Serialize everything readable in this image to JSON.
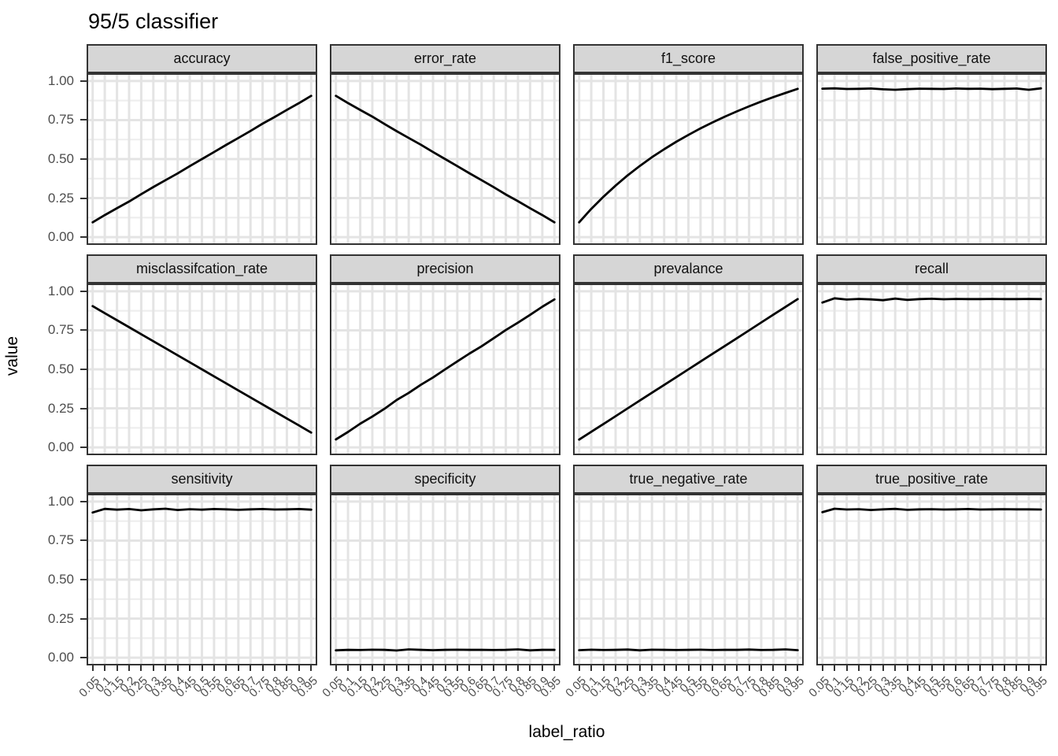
{
  "chart_data": {
    "type": "line",
    "title": "95/5 classifier",
    "xlabel": "label_ratio",
    "ylabel": "value",
    "layout": "facet grid 3 rows x 4 cols, shared axes",
    "legend": "none",
    "grid": "major and minor, light gray on white",
    "x": [
      0.05,
      0.1,
      0.15,
      0.2,
      0.25,
      0.3,
      0.35,
      0.4,
      0.45,
      0.5,
      0.55,
      0.6,
      0.65,
      0.7,
      0.75,
      0.8,
      0.85,
      0.9,
      0.95
    ],
    "x_tick_labels": [
      "0.05",
      "0.1",
      "0.15",
      "0.2",
      "0.25",
      "0.3",
      "0.35",
      "0.4",
      "0.45",
      "0.5",
      "0.55",
      "0.6",
      "0.65",
      "0.7",
      "0.75",
      "0.8",
      "0.85",
      "0.9",
      "0.95"
    ],
    "y_ticks": [
      1.0,
      0.75,
      0.5,
      0.25,
      0.0
    ],
    "y_tick_labels": [
      "1.00",
      "0.75",
      "0.50",
      "0.25",
      "0.00"
    ],
    "y_minor_ticks": [
      0.125,
      0.375,
      0.625,
      0.875
    ],
    "ylim": [
      -0.05,
      1.05
    ],
    "facets": [
      {
        "label": "accuracy",
        "values": [
          0.095,
          0.141,
          0.185,
          0.228,
          0.275,
          0.321,
          0.365,
          0.408,
          0.455,
          0.5,
          0.545,
          0.591,
          0.635,
          0.68,
          0.727,
          0.77,
          0.815,
          0.859,
          0.905
        ]
      },
      {
        "label": "error_rate",
        "values": [
          0.905,
          0.859,
          0.815,
          0.772,
          0.725,
          0.679,
          0.635,
          0.592,
          0.545,
          0.5,
          0.455,
          0.409,
          0.365,
          0.32,
          0.273,
          0.23,
          0.185,
          0.141,
          0.095
        ]
      },
      {
        "label": "f1_score",
        "values": [
          0.095,
          0.181,
          0.259,
          0.33,
          0.396,
          0.456,
          0.512,
          0.563,
          0.611,
          0.655,
          0.697,
          0.735,
          0.772,
          0.806,
          0.838,
          0.869,
          0.897,
          0.924,
          0.95
        ]
      },
      {
        "label": "false_positive_rate",
        "values": [
          0.951,
          0.953,
          0.949,
          0.95,
          0.952,
          0.947,
          0.944,
          0.948,
          0.951,
          0.95,
          0.949,
          0.952,
          0.95,
          0.951,
          0.948,
          0.95,
          0.952,
          0.944,
          0.953
        ]
      },
      {
        "label": "misclassifcation_rate",
        "values": [
          0.905,
          0.86,
          0.815,
          0.77,
          0.725,
          0.68,
          0.635,
          0.59,
          0.545,
          0.5,
          0.455,
          0.41,
          0.365,
          0.32,
          0.275,
          0.23,
          0.185,
          0.14,
          0.095
        ]
      },
      {
        "label": "precision",
        "values": [
          0.051,
          0.099,
          0.152,
          0.198,
          0.247,
          0.303,
          0.349,
          0.401,
          0.448,
          0.5,
          0.551,
          0.601,
          0.648,
          0.7,
          0.752,
          0.799,
          0.849,
          0.901,
          0.948
        ]
      },
      {
        "label": "prevalance",
        "values": [
          0.05,
          0.1,
          0.15,
          0.2,
          0.25,
          0.3,
          0.35,
          0.4,
          0.45,
          0.5,
          0.55,
          0.6,
          0.65,
          0.7,
          0.75,
          0.8,
          0.85,
          0.9,
          0.95
        ]
      },
      {
        "label": "recall",
        "values": [
          0.928,
          0.955,
          0.947,
          0.951,
          0.948,
          0.943,
          0.953,
          0.945,
          0.95,
          0.952,
          0.949,
          0.951,
          0.95,
          0.95,
          0.951,
          0.95,
          0.95,
          0.951,
          0.95
        ]
      },
      {
        "label": "sensitivity",
        "values": [
          0.93,
          0.953,
          0.948,
          0.952,
          0.944,
          0.95,
          0.954,
          0.946,
          0.951,
          0.948,
          0.952,
          0.95,
          0.947,
          0.95,
          0.952,
          0.949,
          0.95,
          0.952,
          0.948
        ]
      },
      {
        "label": "specificity",
        "values": [
          0.047,
          0.05,
          0.049,
          0.051,
          0.05,
          0.046,
          0.053,
          0.05,
          0.048,
          0.05,
          0.051,
          0.05,
          0.05,
          0.049,
          0.05,
          0.053,
          0.047,
          0.05,
          0.05
        ]
      },
      {
        "label": "true_negative_rate",
        "values": [
          0.048,
          0.051,
          0.049,
          0.05,
          0.052,
          0.047,
          0.051,
          0.05,
          0.049,
          0.05,
          0.051,
          0.049,
          0.05,
          0.05,
          0.052,
          0.049,
          0.05,
          0.053,
          0.048
        ]
      },
      {
        "label": "true_positive_rate",
        "values": [
          0.932,
          0.954,
          0.949,
          0.951,
          0.946,
          0.95,
          0.953,
          0.947,
          0.95,
          0.951,
          0.949,
          0.95,
          0.952,
          0.949,
          0.95,
          0.951,
          0.95,
          0.95,
          0.949
        ]
      }
    ]
  },
  "colors": {
    "line": "#000000",
    "strip_bg": "#d6d6d6",
    "strip_border": "#333333",
    "panel_border": "#333333",
    "grid_major": "#e4e4e4",
    "grid_minor": "#eeeeee",
    "axis_text": "#4d4d4d",
    "tick_mark": "#333333"
  }
}
